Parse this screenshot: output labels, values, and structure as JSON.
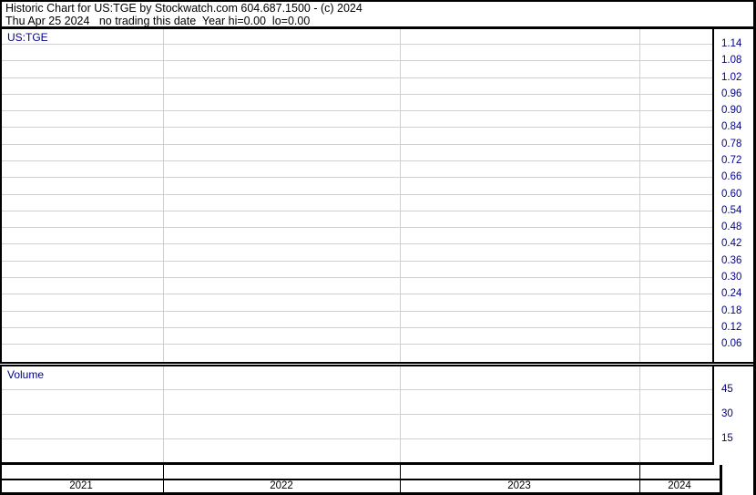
{
  "header": {
    "line1": "Historic Chart for US:TGE by Stockwatch.com 604.687.1500 - (c) 2024",
    "line2": "Thu Apr 25 2024   no trading this date  Year hi=0.00  lo=0.00"
  },
  "price_panel": {
    "label": "US:TGE",
    "axis_ticks": [
      "1.14",
      "1.08",
      "1.02",
      "0.96",
      "0.90",
      "0.84",
      "0.78",
      "0.72",
      "0.66",
      "0.60",
      "0.54",
      "0.48",
      "0.42",
      "0.36",
      "0.30",
      "0.24",
      "0.18",
      "0.12",
      "0.06"
    ]
  },
  "volume_panel": {
    "label": "Volume",
    "axis_ticks": [
      "45",
      "30",
      "15"
    ]
  },
  "x_axis": {
    "years": [
      "2021",
      "2022",
      "2023",
      "2024"
    ]
  },
  "colors": {
    "axis_text": "#00008b",
    "gridline": "#d0d0d0",
    "border": "#000000",
    "background": "#ffffff"
  },
  "chart_data": [
    {
      "type": "line",
      "panel": "price",
      "title": "US:TGE",
      "x": [],
      "series": [],
      "y_ticks": [
        1.14,
        1.08,
        1.02,
        0.96,
        0.9,
        0.84,
        0.78,
        0.72,
        0.66,
        0.6,
        0.54,
        0.48,
        0.42,
        0.36,
        0.3,
        0.24,
        0.18,
        0.12,
        0.06
      ],
      "ylim": [
        0.03,
        1.17
      ],
      "x_categories": [
        "2021",
        "2022",
        "2023",
        "2024"
      ],
      "grid": true,
      "legend_position": "none"
    },
    {
      "type": "bar",
      "panel": "volume",
      "title": "Volume",
      "x": [],
      "values": [],
      "y_ticks": [
        45,
        30,
        15
      ],
      "ylim": [
        0,
        58
      ],
      "x_categories": [
        "2021",
        "2022",
        "2023",
        "2024"
      ],
      "grid": true,
      "legend_position": "none"
    }
  ]
}
